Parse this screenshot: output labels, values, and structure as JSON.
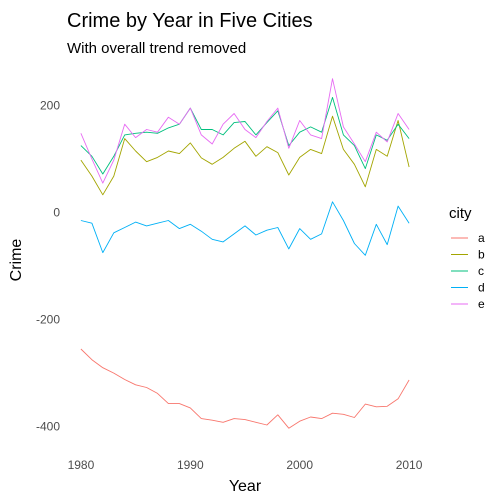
{
  "chart_data": {
    "type": "line",
    "title": "Crime by Year in Five Cities",
    "subtitle": "With overall trend removed",
    "xlabel": "Year",
    "ylabel": "Crime",
    "xlim": [
      1979,
      2011
    ],
    "ylim": [
      -440,
      270
    ],
    "x_ticks": [
      1980,
      1990,
      2000,
      2010
    ],
    "y_ticks": [
      -400,
      -200,
      0,
      200
    ],
    "grid": false,
    "legend": {
      "title": "city",
      "placement": "right"
    },
    "x": [
      1980,
      1981,
      1982,
      1983,
      1984,
      1985,
      1986,
      1987,
      1988,
      1989,
      1990,
      1991,
      1992,
      1993,
      1994,
      1995,
      1996,
      1997,
      1998,
      1999,
      2000,
      2001,
      2002,
      2003,
      2004,
      2005,
      2006,
      2007,
      2008,
      2009,
      2010
    ],
    "series": [
      {
        "name": "a",
        "color": "#F8766D",
        "values": [
          -255,
          -275,
          -290,
          -300,
          -312,
          -322,
          -327,
          -338,
          -357,
          -357,
          -365,
          -385,
          -388,
          -392,
          -385,
          -387,
          -392,
          -397,
          -378,
          -403,
          -390,
          -382,
          -385,
          -375,
          -377,
          -383,
          -358,
          -363,
          -362,
          -348,
          -313
        ]
      },
      {
        "name": "b",
        "color": "#A3A500",
        "values": [
          98,
          68,
          33,
          68,
          138,
          115,
          95,
          103,
          115,
          110,
          130,
          102,
          90,
          103,
          120,
          133,
          105,
          123,
          112,
          70,
          103,
          118,
          110,
          180,
          118,
          90,
          48,
          118,
          105,
          172,
          85
        ]
      },
      {
        "name": "c",
        "color": "#00BF7D",
        "values": [
          125,
          105,
          72,
          105,
          145,
          148,
          150,
          148,
          158,
          165,
          195,
          155,
          155,
          145,
          168,
          170,
          145,
          168,
          190,
          125,
          150,
          160,
          150,
          215,
          145,
          125,
          82,
          145,
          135,
          165,
          138
        ]
      },
      {
        "name": "d",
        "color": "#00B0F6",
        "values": [
          -15,
          -20,
          -75,
          -38,
          -28,
          -18,
          -25,
          -20,
          -15,
          -30,
          -22,
          -35,
          -50,
          -55,
          -40,
          -25,
          -42,
          -33,
          -28,
          -68,
          -30,
          -50,
          -40,
          20,
          -15,
          -58,
          -80,
          -22,
          -60,
          12,
          -20
        ]
      },
      {
        "name": "e",
        "color": "#E76BF3",
        "values": [
          148,
          100,
          55,
          98,
          165,
          140,
          155,
          150,
          178,
          165,
          195,
          145,
          128,
          165,
          185,
          155,
          140,
          170,
          195,
          120,
          172,
          145,
          138,
          250,
          160,
          128,
          95,
          150,
          132,
          185,
          155
        ]
      }
    ]
  }
}
